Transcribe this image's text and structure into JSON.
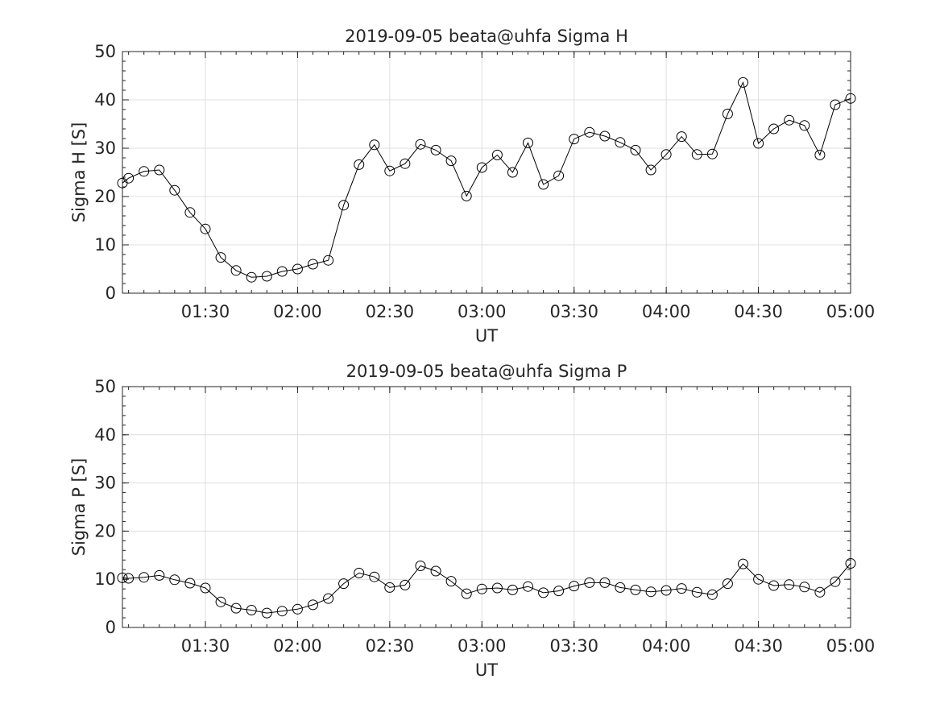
{
  "chart_data": [
    {
      "type": "line",
      "title": "2019-09-05  beata@uhfa Sigma H",
      "xlabel": "UT",
      "ylabel": "Sigma H [S]",
      "xlim": [
        "01:03",
        "05:00"
      ],
      "ylim": [
        0,
        50
      ],
      "yticks": [
        0,
        10,
        20,
        30,
        40,
        50
      ],
      "xticks": [
        "01:30",
        "02:00",
        "02:30",
        "03:00",
        "03:30",
        "04:00",
        "04:30",
        "05:00"
      ],
      "grid": true,
      "marker": "open-circle",
      "line_color": "#000000",
      "series": [
        {
          "x": [
            "01:03",
            "01:05",
            "01:10",
            "01:15",
            "01:20",
            "01:25",
            "01:30",
            "01:35",
            "01:40",
            "01:45",
            "01:50",
            "01:55",
            "02:00",
            "02:05",
            "02:10",
            "02:15",
            "02:20",
            "02:25",
            "02:30",
            "02:35",
            "02:40",
            "02:45",
            "02:50",
            "02:55",
            "03:00",
            "03:05",
            "03:10",
            "03:15",
            "03:20",
            "03:25",
            "03:30",
            "03:35",
            "03:40",
            "03:45",
            "03:50",
            "03:55",
            "04:00",
            "04:05",
            "04:10",
            "04:15",
            "04:20",
            "04:25",
            "04:30",
            "04:35",
            "04:40",
            "04:45",
            "04:50",
            "04:55",
            "05:00"
          ],
          "y": [
            22.8,
            23.8,
            25.2,
            25.5,
            21.3,
            16.7,
            13.3,
            7.4,
            4.7,
            3.3,
            3.5,
            4.5,
            5.0,
            6.0,
            6.8,
            18.2,
            26.6,
            30.7,
            25.3,
            26.8,
            30.8,
            29.6,
            27.4,
            20.1,
            26.0,
            28.6,
            25.0,
            31.1,
            22.5,
            24.3,
            31.9,
            33.3,
            32.5,
            31.2,
            29.6,
            25.5,
            28.7,
            32.4,
            28.7,
            28.8,
            37.1,
            43.6,
            31.0,
            34.0,
            35.8,
            34.7,
            28.6,
            39.0,
            40.3
          ]
        }
      ]
    },
    {
      "type": "line",
      "title": "2019-09-05  beata@uhfa Sigma P",
      "xlabel": "UT",
      "ylabel": "Sigma P [S]",
      "xlim": [
        "01:03",
        "05:00"
      ],
      "ylim": [
        0,
        50
      ],
      "yticks": [
        0,
        10,
        20,
        30,
        40,
        50
      ],
      "xticks": [
        "01:30",
        "02:00",
        "02:30",
        "03:00",
        "03:30",
        "04:00",
        "04:30",
        "05:00"
      ],
      "grid": true,
      "marker": "open-circle",
      "line_color": "#000000",
      "series": [
        {
          "x": [
            "01:03",
            "01:05",
            "01:10",
            "01:15",
            "01:20",
            "01:25",
            "01:30",
            "01:35",
            "01:40",
            "01:45",
            "01:50",
            "01:55",
            "02:00",
            "02:05",
            "02:10",
            "02:15",
            "02:20",
            "02:25",
            "02:30",
            "02:35",
            "02:40",
            "02:45",
            "02:50",
            "02:55",
            "03:00",
            "03:05",
            "03:10",
            "03:15",
            "03:20",
            "03:25",
            "03:30",
            "03:35",
            "03:40",
            "03:45",
            "03:50",
            "03:55",
            "04:00",
            "04:05",
            "04:10",
            "04:15",
            "04:20",
            "04:25",
            "04:30",
            "04:35",
            "04:40",
            "04:45",
            "04:50",
            "04:55",
            "05:00"
          ],
          "y": [
            10.3,
            10.2,
            10.4,
            10.8,
            9.9,
            9.2,
            8.2,
            5.3,
            4.0,
            3.6,
            3.0,
            3.4,
            3.8,
            4.7,
            6.0,
            9.1,
            11.3,
            10.5,
            8.3,
            8.8,
            12.8,
            11.7,
            9.6,
            7.0,
            8.0,
            8.2,
            7.8,
            8.5,
            7.2,
            7.6,
            8.6,
            9.3,
            9.3,
            8.3,
            7.8,
            7.4,
            7.7,
            8.1,
            7.3,
            6.8,
            9.1,
            13.2,
            10.0,
            8.7,
            8.9,
            8.4,
            7.3,
            9.5,
            13.3
          ]
        }
      ]
    }
  ]
}
